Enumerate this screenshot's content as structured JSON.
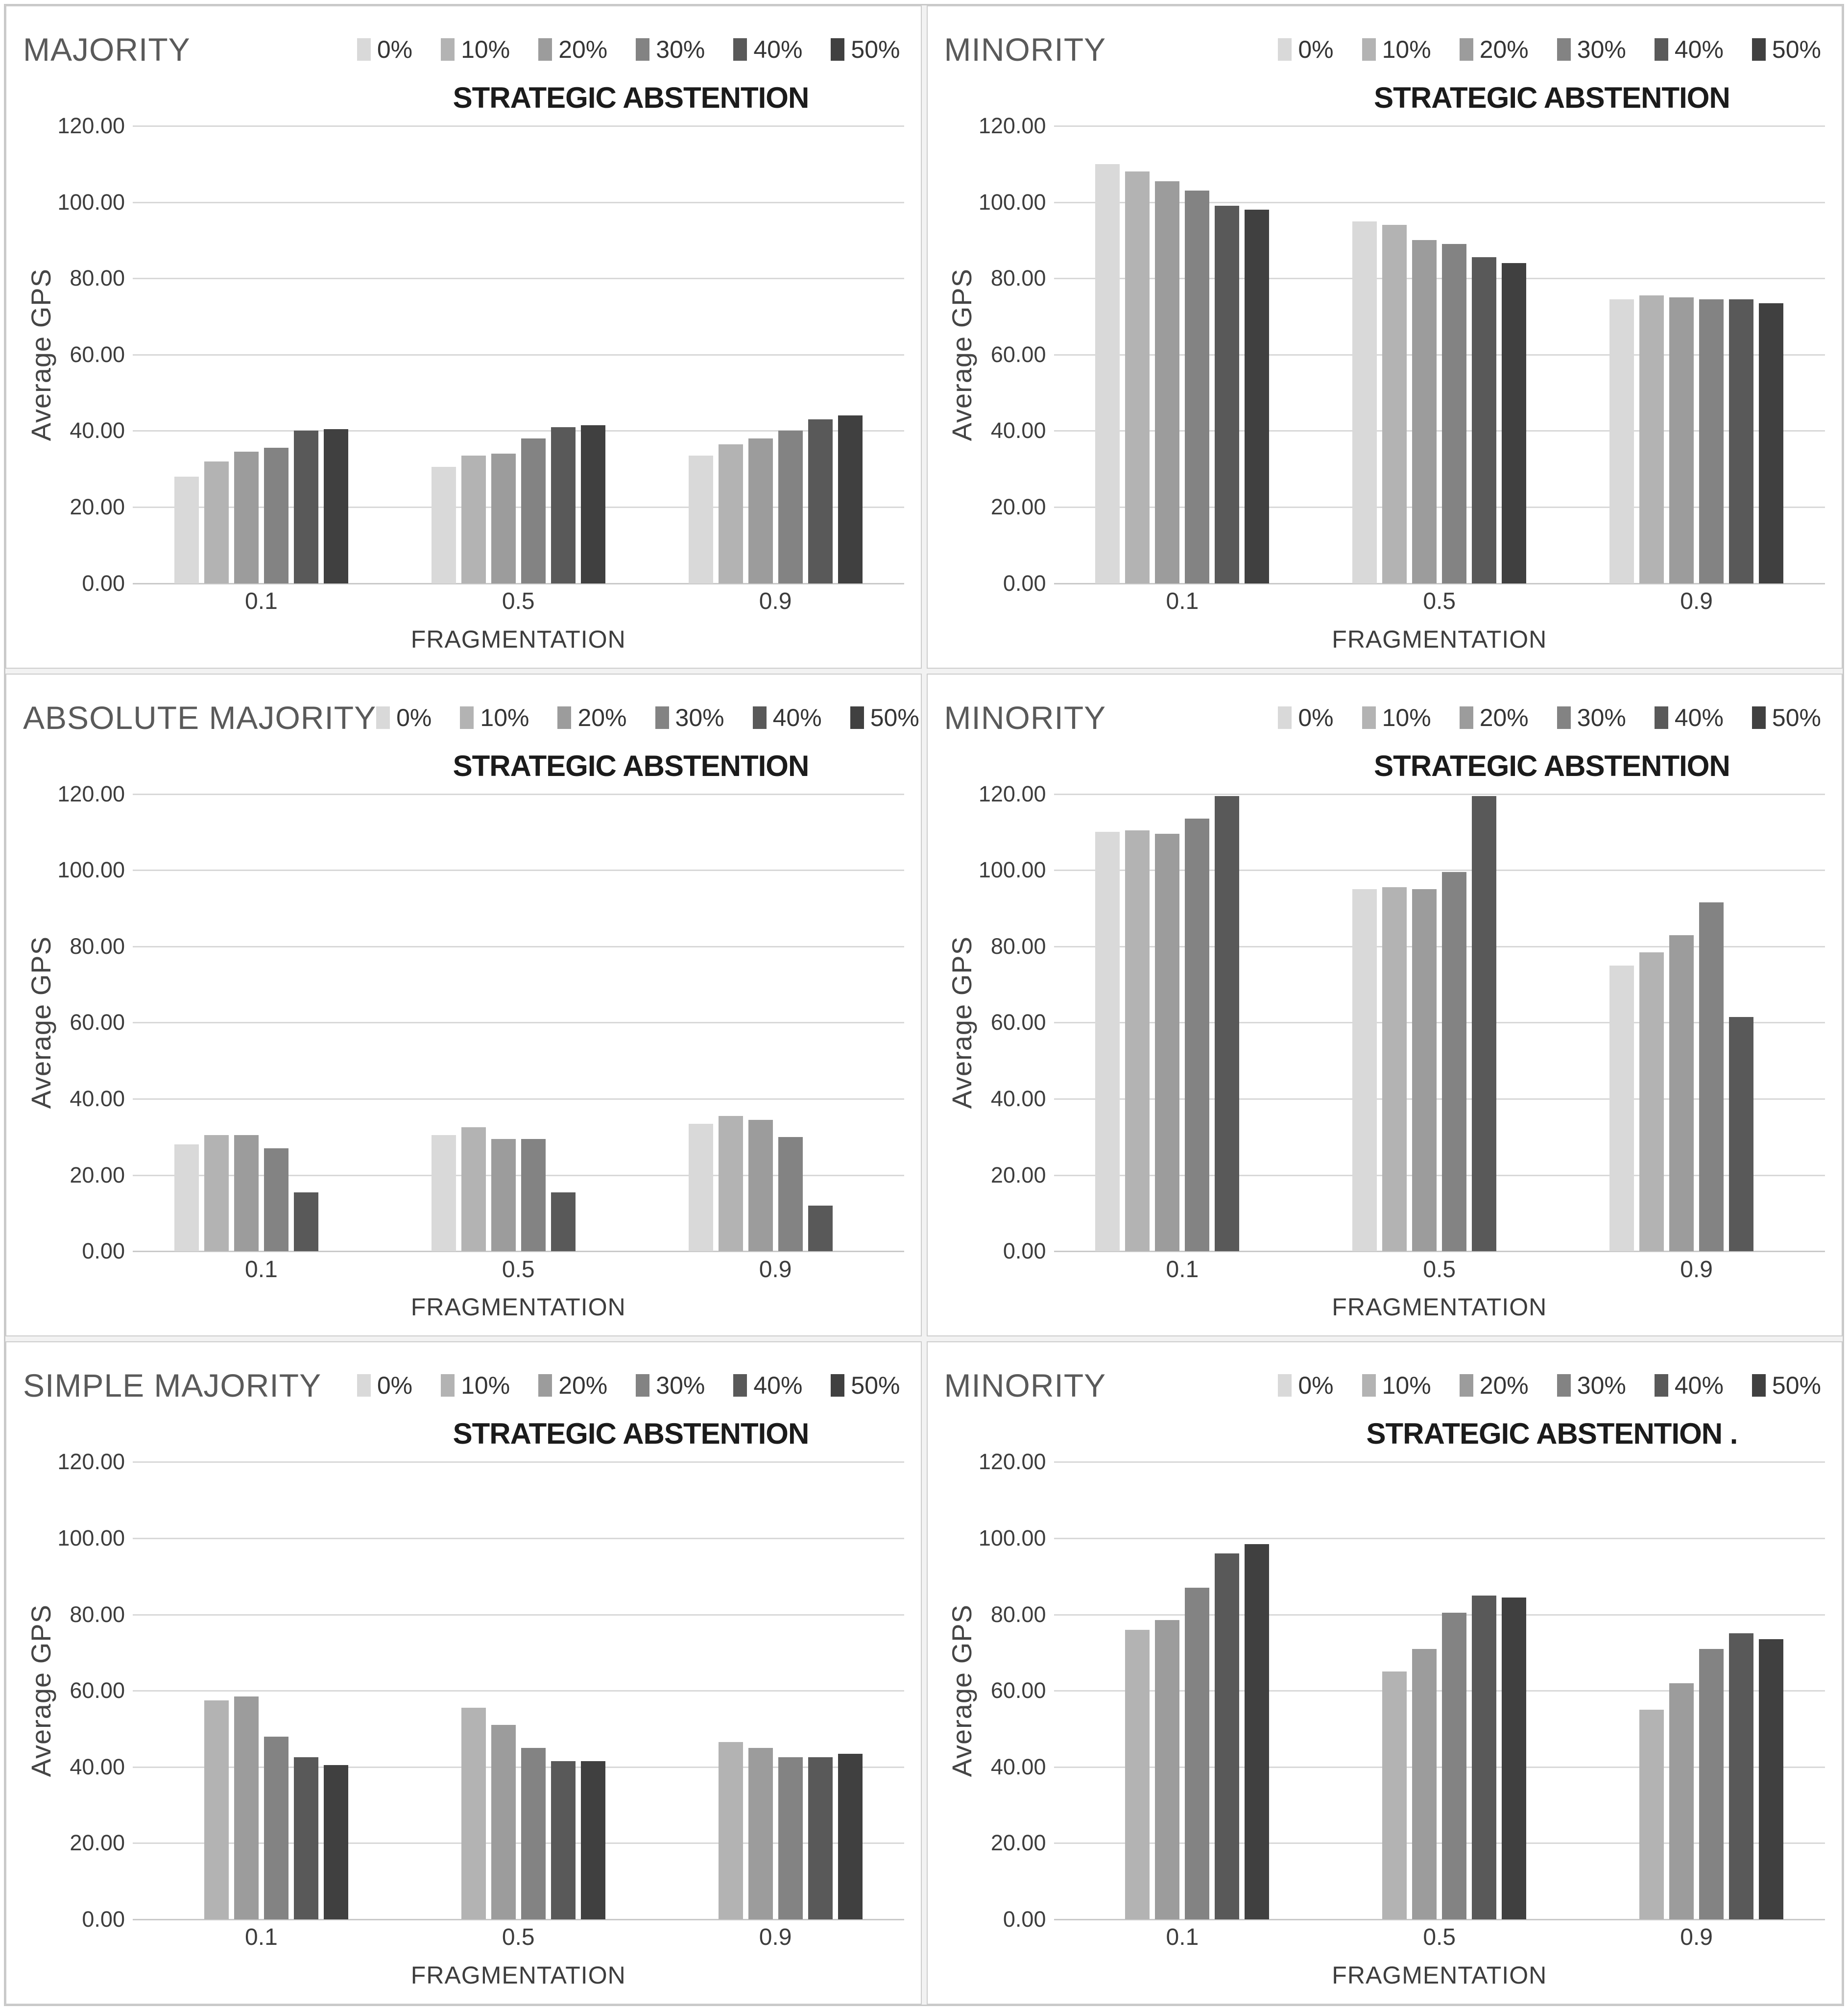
{
  "legend": {
    "labels": [
      "0%",
      "10%",
      "20%",
      "30%",
      "40%",
      "50%"
    ],
    "colors": [
      "#d9d9d9",
      "#b3b3b3",
      "#9c9c9c",
      "#838383",
      "#595959",
      "#404040"
    ],
    "title": "STRATEGIC ABSTENTION"
  },
  "axis": {
    "y_ticks": [
      "120.00",
      "100.00",
      "80.00",
      "60.00",
      "40.00",
      "20.00",
      "0.00"
    ],
    "y_max": 120,
    "categories": [
      "0.1",
      "0.5",
      "0.9"
    ]
  },
  "chart_data": [
    {
      "type": "bar",
      "title": "MAJORITY",
      "legend_title": "STRATEGIC ABSTENTION",
      "ylabel": "Average GPS",
      "xlabel": "FRAGMENTATION",
      "ylim": [
        0,
        120
      ],
      "categories": [
        "0.1",
        "0.5",
        "0.9"
      ],
      "legend_position": "top",
      "grid": true,
      "series": [
        {
          "name": "0%",
          "values": [
            28,
            30.5,
            33.5
          ]
        },
        {
          "name": "10%",
          "values": [
            32,
            33.5,
            36.5
          ]
        },
        {
          "name": "20%",
          "values": [
            34.5,
            34,
            38
          ]
        },
        {
          "name": "30%",
          "values": [
            35.5,
            38,
            40
          ]
        },
        {
          "name": "40%",
          "values": [
            40,
            41,
            43
          ]
        },
        {
          "name": "50%",
          "values": [
            40.5,
            41.5,
            44
          ]
        }
      ]
    },
    {
      "type": "bar",
      "title": "MINORITY",
      "legend_title": "STRATEGIC ABSTENTION",
      "ylabel": "Average GPS",
      "xlabel": "FRAGMENTATION",
      "ylim": [
        0,
        120
      ],
      "categories": [
        "0.1",
        "0.5",
        "0.9"
      ],
      "legend_position": "top",
      "grid": true,
      "series": [
        {
          "name": "0%",
          "values": [
            110,
            95,
            74.5
          ]
        },
        {
          "name": "10%",
          "values": [
            108,
            94,
            75.5
          ]
        },
        {
          "name": "20%",
          "values": [
            105.5,
            90,
            75
          ]
        },
        {
          "name": "30%",
          "values": [
            103,
            89,
            74.5
          ]
        },
        {
          "name": "40%",
          "values": [
            99,
            85.5,
            74.5
          ]
        },
        {
          "name": "50%",
          "values": [
            98,
            84,
            73.5
          ]
        }
      ]
    },
    {
      "type": "bar",
      "title": "ABSOLUTE MAJORITY",
      "legend_title": "STRATEGIC ABSTENTION",
      "ylabel": "Average GPS",
      "xlabel": "FRAGMENTATION",
      "ylim": [
        0,
        120
      ],
      "categories": [
        "0.1",
        "0.5",
        "0.9"
      ],
      "legend_position": "top",
      "grid": true,
      "series": [
        {
          "name": "0%",
          "values": [
            28,
            30.5,
            33.5
          ]
        },
        {
          "name": "10%",
          "values": [
            30.5,
            32.5,
            35.5
          ]
        },
        {
          "name": "20%",
          "values": [
            30.5,
            29.5,
            34.5
          ]
        },
        {
          "name": "30%",
          "values": [
            27,
            29.5,
            30
          ]
        },
        {
          "name": "40%",
          "values": [
            15.5,
            15.5,
            12
          ]
        },
        {
          "name": "50%",
          "values": [
            0,
            0,
            0
          ]
        }
      ]
    },
    {
      "type": "bar",
      "title": "MINORITY",
      "legend_title": "STRATEGIC ABSTENTION",
      "ylabel": "Average GPS",
      "xlabel": "FRAGMENTATION",
      "ylim": [
        0,
        120
      ],
      "categories": [
        "0.1",
        "0.5",
        "0.9"
      ],
      "legend_position": "top",
      "grid": true,
      "series": [
        {
          "name": "0%",
          "values": [
            110,
            95,
            75
          ]
        },
        {
          "name": "10%",
          "values": [
            110.5,
            95.5,
            78.5
          ]
        },
        {
          "name": "20%",
          "values": [
            109.5,
            95,
            83
          ]
        },
        {
          "name": "30%",
          "values": [
            113.5,
            99.5,
            91.5
          ]
        },
        {
          "name": "40%",
          "values": [
            119.5,
            119.5,
            61.5
          ]
        },
        {
          "name": "50%",
          "values": [
            0,
            0,
            0
          ]
        }
      ]
    },
    {
      "type": "bar",
      "title": "SIMPLE MAJORITY",
      "legend_title": "STRATEGIC ABSTENTION",
      "ylabel": "Average GPS",
      "xlabel": "FRAGMENTATION",
      "ylim": [
        0,
        120
      ],
      "categories": [
        "0.1",
        "0.5",
        "0.9"
      ],
      "legend_position": "top",
      "grid": true,
      "series": [
        {
          "name": "0%",
          "values": [
            0,
            0,
            0
          ]
        },
        {
          "name": "10%",
          "values": [
            57.5,
            55.5,
            46.5
          ]
        },
        {
          "name": "20%",
          "values": [
            58.5,
            51,
            45
          ]
        },
        {
          "name": "30%",
          "values": [
            48,
            45,
            42.5
          ]
        },
        {
          "name": "40%",
          "values": [
            42.5,
            41.5,
            42.5
          ]
        },
        {
          "name": "50%",
          "values": [
            40.5,
            41.5,
            43.5
          ]
        }
      ]
    },
    {
      "type": "bar",
      "title": "MINORITY",
      "legend_title": "STRATEGIC ABSTENTION .",
      "ylabel": "Average GPS",
      "xlabel": "FRAGMENTATION",
      "ylim": [
        0,
        120
      ],
      "categories": [
        "0.1",
        "0.5",
        "0.9"
      ],
      "legend_position": "top",
      "grid": true,
      "series": [
        {
          "name": "0%",
          "values": [
            0,
            0,
            0
          ]
        },
        {
          "name": "10%",
          "values": [
            76,
            65,
            55
          ]
        },
        {
          "name": "20%",
          "values": [
            78.5,
            71,
            62
          ]
        },
        {
          "name": "30%",
          "values": [
            87,
            80.5,
            71
          ]
        },
        {
          "name": "40%",
          "values": [
            96,
            85,
            75
          ]
        },
        {
          "name": "50%",
          "values": [
            98.5,
            84.5,
            73.5
          ]
        }
      ]
    }
  ]
}
